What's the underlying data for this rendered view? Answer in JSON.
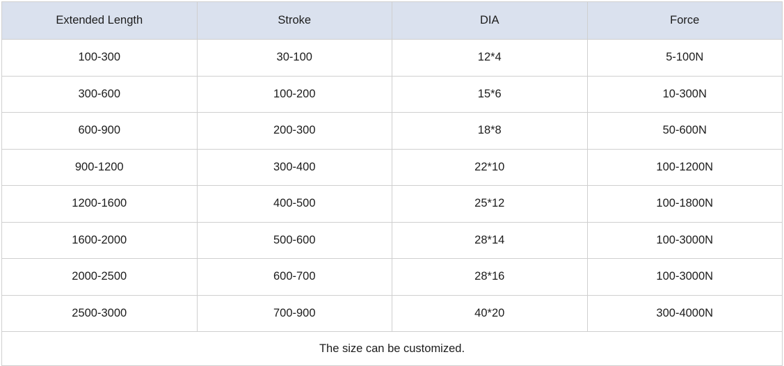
{
  "chart_data": {
    "type": "table",
    "title": "",
    "columns": [
      "Extended Length",
      "Stroke",
      "DIA",
      "Force"
    ],
    "rows": [
      [
        "100-300",
        "30-100",
        "12*4",
        "5-100N"
      ],
      [
        "300-600",
        "100-200",
        "15*6",
        "10-300N"
      ],
      [
        "600-900",
        "200-300",
        "18*8",
        "50-600N"
      ],
      [
        "900-1200",
        "300-400",
        "22*10",
        "100-1200N"
      ],
      [
        "1200-1600",
        "400-500",
        "25*12",
        "100-1800N"
      ],
      [
        "1600-2000",
        "500-600",
        "28*14",
        "100-3000N"
      ],
      [
        "2000-2500",
        "600-700",
        "28*16",
        "100-3000N"
      ],
      [
        "2500-3000",
        "700-900",
        "40*20",
        "300-4000N"
      ]
    ],
    "footer_note": "The size can be customized."
  },
  "colors": {
    "header_bg": "#dae1ee",
    "border": "#cfcfcf",
    "text": "#1c1c1c",
    "row_bg": "#ffffff"
  }
}
